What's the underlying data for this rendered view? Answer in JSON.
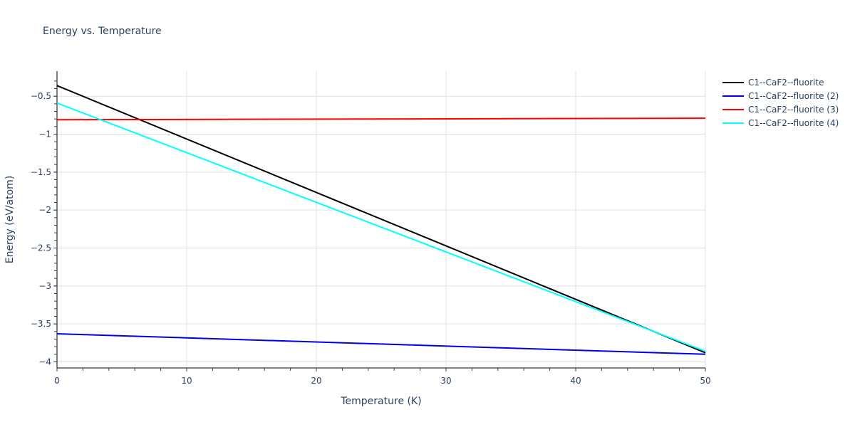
{
  "chart_data": {
    "type": "line",
    "title": "Energy vs. Temperature",
    "xlabel": "Temperature (K)",
    "ylabel": "Energy (eV/atom)",
    "xlim": [
      0,
      50
    ],
    "ylim": [
      -4.08,
      -0.17
    ],
    "x_ticks": [
      0,
      10,
      20,
      30,
      40,
      50
    ],
    "y_ticks": [
      -0.5,
      -1,
      -1.5,
      -2,
      -2.5,
      -3,
      -3.5,
      -4
    ],
    "y_tick_labels": [
      "−0.5",
      "−1",
      "−1.5",
      "−2",
      "−2.5",
      "−3",
      "−3.5",
      "−4"
    ],
    "grid": true,
    "legend_position": "right",
    "series": [
      {
        "name": "C1--CaF2--fluorite",
        "color": "#000000",
        "x": [
          0,
          50
        ],
        "values": [
          -0.36,
          -3.88
        ]
      },
      {
        "name": "C1--CaF2--fluorite (2)",
        "color": "#0000ee",
        "x": [
          0,
          50
        ],
        "values": [
          -3.63,
          -3.9
        ]
      },
      {
        "name": "C1--CaF2--fluorite (3)",
        "color": "#ff0000",
        "x": [
          0,
          50
        ],
        "values": [
          -0.81,
          -0.79
        ]
      },
      {
        "name": "C1--CaF2--fluorite (4)",
        "color": "#00ffff",
        "x": [
          0,
          50
        ],
        "values": [
          -0.59,
          -3.86
        ]
      }
    ]
  }
}
